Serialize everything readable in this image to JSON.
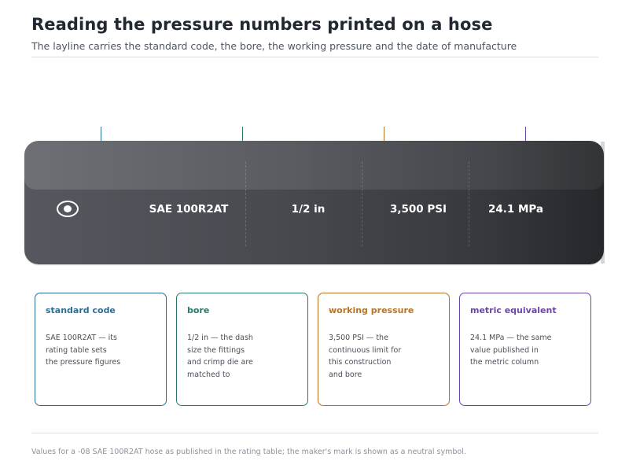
{
  "header": {
    "title": "Reading the pressure numbers printed on a hose",
    "subtitle": "The layline carries the standard code, the bore, the working pressure and the date of manufacture"
  },
  "hose": {
    "maker_mark_icon": "maker-mark-icon",
    "fields": [
      {
        "text": "SAE 100R2AT"
      },
      {
        "text": "1/2 in"
      },
      {
        "text": "3,500 PSI"
      },
      {
        "text": "24.1 MPa"
      }
    ]
  },
  "cards": [
    {
      "title": "standard code",
      "color": "#2a6f97",
      "lines": [
        "SAE 100R2AT — its",
        "rating table sets",
        "the pressure figures"
      ]
    },
    {
      "title": "bore",
      "color": "#2a7a6b",
      "lines": [
        "1/2 in — the dash",
        "size the fittings",
        "and crimp die are",
        "matched to"
      ]
    },
    {
      "title": "working pressure",
      "color": "#b87422",
      "lines": [
        "3,500 PSI — the",
        "continuous limit for",
        "this construction",
        "and bore"
      ]
    },
    {
      "title": "metric equivalent",
      "color": "#6b46a6",
      "lines": [
        "24.1 MPa — the same",
        "value published in",
        "the metric column"
      ]
    }
  ],
  "footnote": "Values for a -08 SAE 100R2AT hose as published in the rating table; the maker's mark is shown as a neutral symbol."
}
